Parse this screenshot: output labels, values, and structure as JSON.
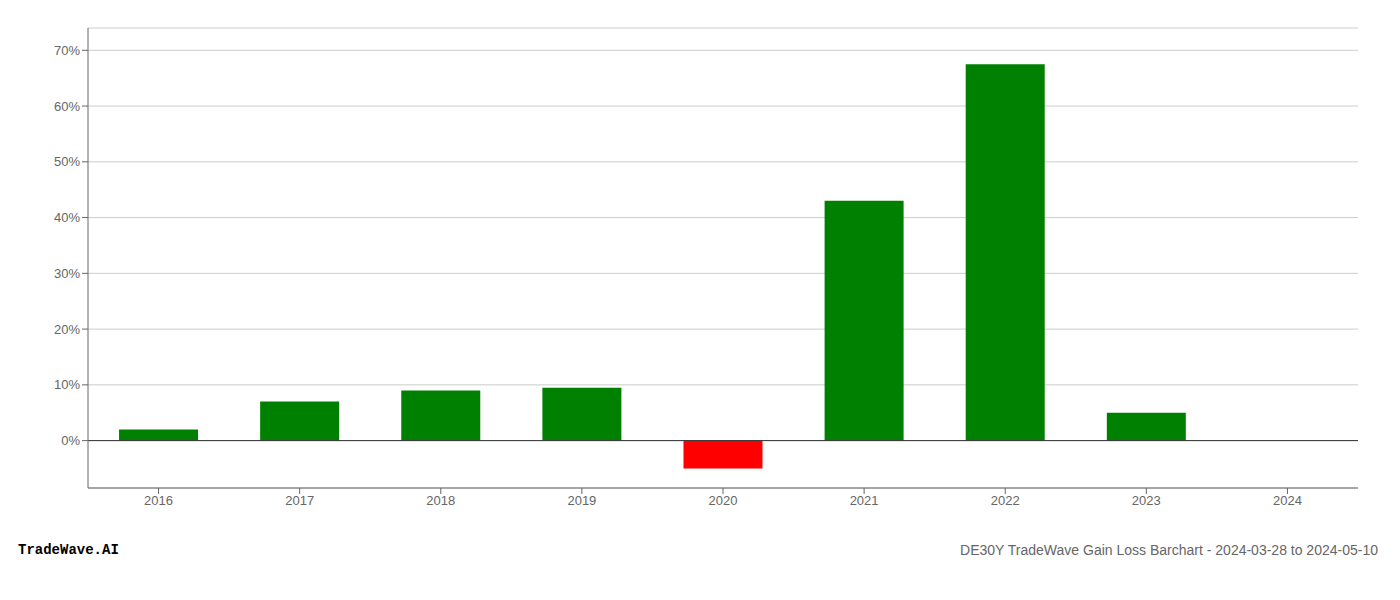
{
  "chart_data": {
    "type": "bar",
    "title": "DE30Y TradeWave Gain Loss Barchart - 2024-03-28 to 2024-05-10",
    "annotations": [
      "TradeWave.AI"
    ],
    "categories": [
      "2016",
      "2017",
      "2018",
      "2019",
      "2020",
      "2021",
      "2022",
      "2023",
      "2024"
    ],
    "values": [
      0.02,
      0.07,
      0.09,
      0.095,
      -0.05,
      0.43,
      0.675,
      0.05,
      null
    ],
    "colors": [
      "#008000",
      "#008000",
      "#008000",
      "#008000",
      "#ff0000",
      "#008000",
      "#008000",
      "#008000",
      null
    ],
    "ylim": [
      -0.085,
      0.74
    ],
    "yticks": [
      {
        "value": 0.0,
        "label": "0%"
      },
      {
        "value": 0.1,
        "label": "10%"
      },
      {
        "value": 0.2,
        "label": "20%"
      },
      {
        "value": 0.3,
        "label": "30%"
      },
      {
        "value": 0.4,
        "label": "40%"
      },
      {
        "value": 0.5,
        "label": "50%"
      },
      {
        "value": 0.6,
        "label": "60%"
      },
      {
        "value": 0.7,
        "label": "70%"
      }
    ],
    "grid": true
  }
}
